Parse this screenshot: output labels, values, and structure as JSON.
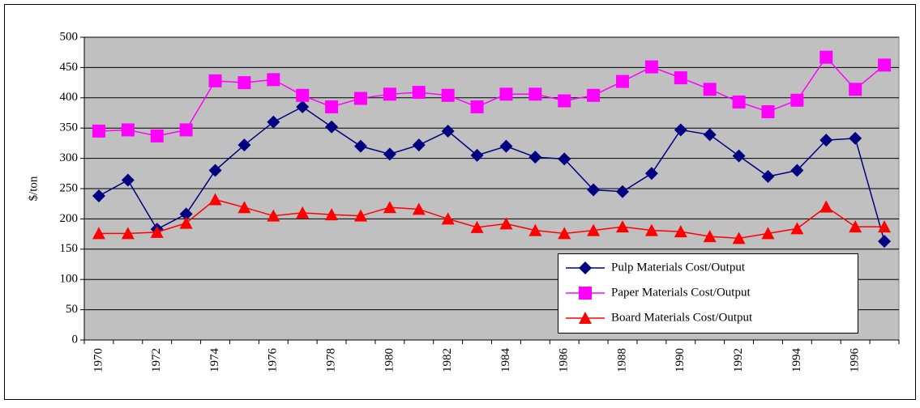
{
  "chart_data": {
    "type": "line",
    "y_label": "$/ton",
    "categories": [
      "1970",
      null,
      "1972",
      null,
      "1974",
      null,
      "1976",
      null,
      "1978",
      null,
      "1980",
      null,
      "1982",
      null,
      "1984",
      null,
      "1986",
      null,
      "1988",
      null,
      "1990",
      null,
      "1992",
      null,
      "1994",
      null,
      "1996",
      null
    ],
    "series": [
      {
        "name": "Pulp Materials Cost/Output",
        "color": "#000080",
        "marker": "diamond",
        "values": [
          238,
          264,
          183,
          208,
          280,
          322,
          360,
          385,
          352,
          320,
          307,
          322,
          345,
          305,
          320,
          302,
          299,
          248,
          245,
          275,
          347,
          339,
          304,
          270,
          280,
          330,
          333,
          163
        ]
      },
      {
        "name": "Paper Materials Cost/Output",
        "color": "#ff00ff",
        "marker": "square",
        "values": [
          345,
          347,
          337,
          347,
          428,
          425,
          430,
          404,
          385,
          399,
          406,
          409,
          404,
          385,
          406,
          406,
          395,
          404,
          427,
          451,
          433,
          414,
          393,
          377,
          396,
          467,
          414,
          454
        ]
      },
      {
        "name": "Board Materials Cost/Output",
        "color": "#ff0000",
        "marker": "triangle",
        "values": [
          176,
          176,
          178,
          193,
          232,
          219,
          205,
          210,
          207,
          205,
          219,
          216,
          200,
          186,
          192,
          181,
          176,
          181,
          187,
          181,
          179,
          171,
          168,
          176,
          184,
          220,
          187,
          187
        ]
      }
    ],
    "ylim": [
      0,
      500
    ],
    "yticks": [
      0,
      50,
      100,
      150,
      200,
      250,
      300,
      350,
      400,
      450,
      500
    ],
    "grid": true,
    "plot_background": "#c0c0c0",
    "legend": "lower right"
  }
}
